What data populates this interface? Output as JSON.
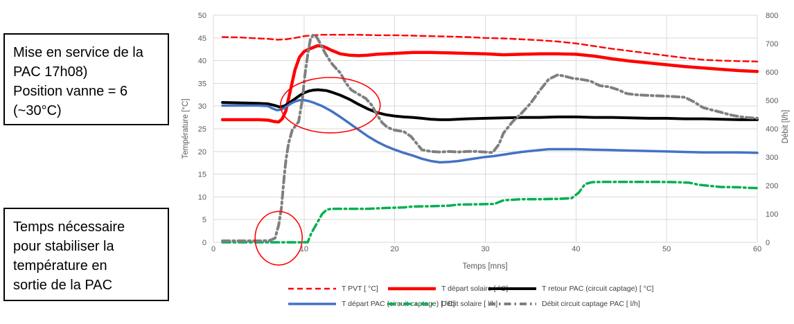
{
  "annotations_panel": {
    "box1_text": "Mise en service de la\nPAC 17h08)\nPosition vanne = 6\n(~30°C)",
    "box2_text": "Temps nécessaire\npour stabiliser la\ntempérature en\nsortie de la PAC"
  },
  "chart_data": {
    "type": "line",
    "title": "",
    "xlabel": "Temps [mns]",
    "ylabel_left": "Température [°C]",
    "ylabel_right": "Débit [l/h]",
    "xlim": [
      0,
      60
    ],
    "ylim_left": [
      0,
      50
    ],
    "ylim_right": [
      0,
      800
    ],
    "x_ticks": [
      0,
      10,
      20,
      30,
      40,
      50,
      60
    ],
    "y_ticks_left": [
      0,
      5,
      10,
      15,
      20,
      25,
      30,
      35,
      40,
      45,
      50
    ],
    "y_ticks_right": [
      0,
      100,
      200,
      300,
      400,
      500,
      600,
      700,
      800
    ],
    "grid": true,
    "legend_position": "bottom",
    "colors": {
      "grid": "#d9d9d9",
      "tick_text": "#595959",
      "annotation": "#ff0000"
    },
    "series": [
      {
        "id": "t_pvt",
        "name": "T PVT [ °C]",
        "color": "#ff0000",
        "axis": "left",
        "style": "dashed",
        "width": 2.4,
        "dash": "8 5",
        "points": [
          [
            1,
            45.2
          ],
          [
            3,
            45.1
          ],
          [
            5,
            44.9
          ],
          [
            6,
            44.8
          ],
          [
            7,
            44.6
          ],
          [
            8,
            44.7
          ],
          [
            9,
            45.0
          ],
          [
            10,
            45.4
          ],
          [
            11,
            45.6
          ],
          [
            12,
            45.7
          ],
          [
            13,
            45.7
          ],
          [
            14,
            45.7
          ],
          [
            16,
            45.7
          ],
          [
            18,
            45.6
          ],
          [
            20,
            45.6
          ],
          [
            22,
            45.5
          ],
          [
            24,
            45.4
          ],
          [
            26,
            45.3
          ],
          [
            28,
            45.2
          ],
          [
            30,
            45.0
          ],
          [
            32,
            44.9
          ],
          [
            34,
            44.7
          ],
          [
            36,
            44.5
          ],
          [
            38,
            44.2
          ],
          [
            40,
            43.8
          ],
          [
            42,
            43.2
          ],
          [
            44,
            42.6
          ],
          [
            46,
            42.1
          ],
          [
            48,
            41.6
          ],
          [
            50,
            41.1
          ],
          [
            52,
            40.6
          ],
          [
            54,
            40.2
          ],
          [
            56,
            40.0
          ],
          [
            58,
            39.9
          ],
          [
            60,
            39.8
          ]
        ]
      },
      {
        "id": "t_depart_solaire",
        "name": "T départ solaire [ °C]",
        "color": "#ff0000",
        "axis": "left",
        "style": "solid",
        "width": 4.5,
        "dash": null,
        "points": [
          [
            1,
            27.0
          ],
          [
            3,
            27.0
          ],
          [
            5,
            27.0
          ],
          [
            6,
            26.9
          ],
          [
            6.7,
            26.6
          ],
          [
            7.2,
            26.5
          ],
          [
            7.6,
            27.2
          ],
          [
            8,
            29.0
          ],
          [
            8.5,
            33.5
          ],
          [
            9,
            38.0
          ],
          [
            9.5,
            40.8
          ],
          [
            10,
            42.0
          ],
          [
            10.5,
            42.5
          ],
          [
            11,
            42.9
          ],
          [
            11.5,
            43.3
          ],
          [
            12,
            43.2
          ],
          [
            12.5,
            42.8
          ],
          [
            13,
            42.3
          ],
          [
            13.5,
            41.9
          ],
          [
            14,
            41.5
          ],
          [
            15,
            41.2
          ],
          [
            16,
            41.1
          ],
          [
            17,
            41.2
          ],
          [
            18,
            41.4
          ],
          [
            20,
            41.6
          ],
          [
            22,
            41.8
          ],
          [
            24,
            41.8
          ],
          [
            26,
            41.7
          ],
          [
            28,
            41.6
          ],
          [
            30,
            41.5
          ],
          [
            32,
            41.3
          ],
          [
            34,
            41.4
          ],
          [
            36,
            41.5
          ],
          [
            38,
            41.5
          ],
          [
            40,
            41.4
          ],
          [
            42,
            41.0
          ],
          [
            44,
            40.4
          ],
          [
            46,
            39.9
          ],
          [
            48,
            39.5
          ],
          [
            50,
            39.1
          ],
          [
            52,
            38.7
          ],
          [
            54,
            38.4
          ],
          [
            56,
            38.1
          ],
          [
            58,
            37.8
          ],
          [
            60,
            37.6
          ]
        ]
      },
      {
        "id": "t_retour_pac",
        "name": "T retour PAC (circuit captage) [ °C]",
        "color": "#000000",
        "axis": "left",
        "style": "solid",
        "width": 4,
        "dash": null,
        "points": [
          [
            1,
            30.8
          ],
          [
            3,
            30.7
          ],
          [
            5,
            30.6
          ],
          [
            6,
            30.5
          ],
          [
            6.8,
            30.1
          ],
          [
            7.3,
            29.8
          ],
          [
            7.8,
            30.0
          ],
          [
            8.3,
            30.6
          ],
          [
            9,
            31.6
          ],
          [
            9.5,
            32.3
          ],
          [
            10,
            32.9
          ],
          [
            10.5,
            33.3
          ],
          [
            11,
            33.5
          ],
          [
            11.5,
            33.6
          ],
          [
            12,
            33.5
          ],
          [
            12.5,
            33.4
          ],
          [
            13,
            33.1
          ],
          [
            14,
            32.4
          ],
          [
            15,
            31.5
          ],
          [
            16,
            30.4
          ],
          [
            17,
            29.4
          ],
          [
            18,
            28.6
          ],
          [
            19,
            28.1
          ],
          [
            20,
            27.8
          ],
          [
            21,
            27.6
          ],
          [
            22,
            27.5
          ],
          [
            23,
            27.3
          ],
          [
            24,
            27.1
          ],
          [
            25,
            27.0
          ],
          [
            26,
            27.0
          ],
          [
            28,
            27.2
          ],
          [
            30,
            27.3
          ],
          [
            32,
            27.4
          ],
          [
            34,
            27.5
          ],
          [
            36,
            27.5
          ],
          [
            38,
            27.6
          ],
          [
            40,
            27.6
          ],
          [
            42,
            27.5
          ],
          [
            44,
            27.5
          ],
          [
            46,
            27.4
          ],
          [
            48,
            27.3
          ],
          [
            50,
            27.3
          ],
          [
            52,
            27.2
          ],
          [
            54,
            27.2
          ],
          [
            56,
            27.1
          ],
          [
            58,
            27.0
          ],
          [
            60,
            27.0
          ]
        ]
      },
      {
        "id": "t_depart_pac",
        "name": "T départ PAC (circuit captage) [ °C]",
        "color": "#4472c4",
        "axis": "left",
        "style": "solid",
        "width": 3.5,
        "dash": null,
        "points": [
          [
            1,
            30.1
          ],
          [
            3,
            30.1
          ],
          [
            5,
            30.1
          ],
          [
            6,
            30.0
          ],
          [
            6.5,
            29.5
          ],
          [
            7,
            29.1
          ],
          [
            7.5,
            29.2
          ],
          [
            8,
            29.8
          ],
          [
            8.5,
            30.5
          ],
          [
            9,
            31.0
          ],
          [
            9.5,
            31.3
          ],
          [
            10,
            31.3
          ],
          [
            10.5,
            31.1
          ],
          [
            11,
            30.8
          ],
          [
            12,
            30.0
          ],
          [
            13,
            28.9
          ],
          [
            14,
            27.6
          ],
          [
            15,
            26.2
          ],
          [
            16,
            24.8
          ],
          [
            17,
            23.4
          ],
          [
            18,
            22.2
          ],
          [
            19,
            21.2
          ],
          [
            20,
            20.4
          ],
          [
            21,
            19.7
          ],
          [
            22,
            19.1
          ],
          [
            23,
            18.4
          ],
          [
            24,
            17.9
          ],
          [
            25,
            17.6
          ],
          [
            26,
            17.7
          ],
          [
            27,
            17.9
          ],
          [
            28,
            18.2
          ],
          [
            29,
            18.5
          ],
          [
            30,
            18.8
          ],
          [
            31,
            19.0
          ],
          [
            32,
            19.3
          ],
          [
            33,
            19.6
          ],
          [
            34,
            19.9
          ],
          [
            35,
            20.1
          ],
          [
            36,
            20.3
          ],
          [
            37,
            20.5
          ],
          [
            38,
            20.5
          ],
          [
            40,
            20.5
          ],
          [
            42,
            20.4
          ],
          [
            44,
            20.3
          ],
          [
            46,
            20.2
          ],
          [
            48,
            20.1
          ],
          [
            50,
            20.0
          ],
          [
            52,
            19.9
          ],
          [
            54,
            19.8
          ],
          [
            56,
            19.8
          ],
          [
            58,
            19.8
          ],
          [
            60,
            19.7
          ]
        ]
      },
      {
        "id": "debit_solaire",
        "name": "Débit solaire [ l/h]",
        "color": "#00b050",
        "axis": "right",
        "style": "dashdot",
        "width": 3.5,
        "dash": "11 5 2.5 5",
        "points": [
          [
            1,
            0
          ],
          [
            4,
            0
          ],
          [
            7,
            0
          ],
          [
            9,
            0
          ],
          [
            10.4,
            0
          ],
          [
            10.8,
            32
          ],
          [
            11.3,
            60
          ],
          [
            12,
            100
          ],
          [
            12.5,
            115
          ],
          [
            13,
            118
          ],
          [
            15,
            118
          ],
          [
            17,
            118
          ],
          [
            19,
            121
          ],
          [
            21,
            123
          ],
          [
            22,
            126
          ],
          [
            24,
            127
          ],
          [
            26,
            129
          ],
          [
            27,
            133
          ],
          [
            29,
            134
          ],
          [
            31,
            135
          ],
          [
            32,
            148
          ],
          [
            34,
            152
          ],
          [
            36,
            152
          ],
          [
            38,
            153
          ],
          [
            39.5,
            155
          ],
          [
            40.3,
            175
          ],
          [
            41,
            205
          ],
          [
            41.8,
            212
          ],
          [
            43,
            213
          ],
          [
            45,
            213
          ],
          [
            47,
            213
          ],
          [
            49,
            213
          ],
          [
            51,
            212
          ],
          [
            52.5,
            210
          ],
          [
            53.5,
            203
          ],
          [
            55,
            198
          ],
          [
            56,
            195
          ],
          [
            58,
            194
          ],
          [
            59,
            192
          ],
          [
            60,
            191
          ]
        ]
      },
      {
        "id": "debit_captage_pac",
        "name": "Débit circuit captage PAC [ l/h]",
        "color": "#7f7f7f",
        "axis": "right",
        "style": "dashdot",
        "width": 4,
        "dash": "10 5 2.5 5",
        "points": [
          [
            1,
            5
          ],
          [
            3,
            5
          ],
          [
            5,
            5
          ],
          [
            6.2,
            6
          ],
          [
            6.8,
            15
          ],
          [
            7.2,
            60
          ],
          [
            7.5,
            120
          ],
          [
            7.8,
            230
          ],
          [
            8,
            290
          ],
          [
            8.3,
            350
          ],
          [
            8.7,
            395
          ],
          [
            9,
            408
          ],
          [
            9.4,
            425
          ],
          [
            9.8,
            500
          ],
          [
            10.1,
            590
          ],
          [
            10.4,
            660
          ],
          [
            10.7,
            715
          ],
          [
            11,
            730
          ],
          [
            11.4,
            723
          ],
          [
            11.8,
            700
          ],
          [
            12.3,
            668
          ],
          [
            13,
            632
          ],
          [
            13.6,
            610
          ],
          [
            14,
            597
          ],
          [
            14.6,
            562
          ],
          [
            15.2,
            537
          ],
          [
            16,
            522
          ],
          [
            16.8,
            507
          ],
          [
            17.5,
            482
          ],
          [
            18,
            452
          ],
          [
            18.6,
            422
          ],
          [
            19.2,
            405
          ],
          [
            20,
            395
          ],
          [
            21,
            390
          ],
          [
            21.8,
            373
          ],
          [
            22.5,
            345
          ],
          [
            23,
            326
          ],
          [
            24,
            320
          ],
          [
            25,
            318
          ],
          [
            26,
            320
          ],
          [
            27,
            318
          ],
          [
            28,
            320
          ],
          [
            29,
            320
          ],
          [
            30,
            318
          ],
          [
            30.8,
            316
          ],
          [
            31.5,
            345
          ],
          [
            32,
            385
          ],
          [
            33,
            425
          ],
          [
            34,
            455
          ],
          [
            35,
            490
          ],
          [
            36,
            535
          ],
          [
            37,
            575
          ],
          [
            38,
            590
          ],
          [
            38.8,
            585
          ],
          [
            39.6,
            578
          ],
          [
            40.6,
            574
          ],
          [
            41.6,
            568
          ],
          [
            42.6,
            552
          ],
          [
            43.6,
            548
          ],
          [
            44.6,
            538
          ],
          [
            45.6,
            524
          ],
          [
            46.6,
            520
          ],
          [
            47.6,
            518
          ],
          [
            49,
            516
          ],
          [
            50.5,
            514
          ],
          [
            52,
            511
          ],
          [
            53,
            495
          ],
          [
            54,
            475
          ],
          [
            55,
            466
          ],
          [
            56,
            458
          ],
          [
            57,
            449
          ],
          [
            58,
            443
          ],
          [
            59,
            439
          ],
          [
            60,
            437
          ]
        ]
      }
    ],
    "shape_annotations": [
      {
        "type": "ellipse",
        "t": 12.9,
        "value": 30.2,
        "rt": 5.5,
        "rvalue": 6.1,
        "color": "#ff0000"
      },
      {
        "type": "ellipse",
        "t": 7.2,
        "value": 0.9,
        "rt": 2.6,
        "rvalue": 5.9,
        "color": "#ff0000"
      }
    ]
  }
}
